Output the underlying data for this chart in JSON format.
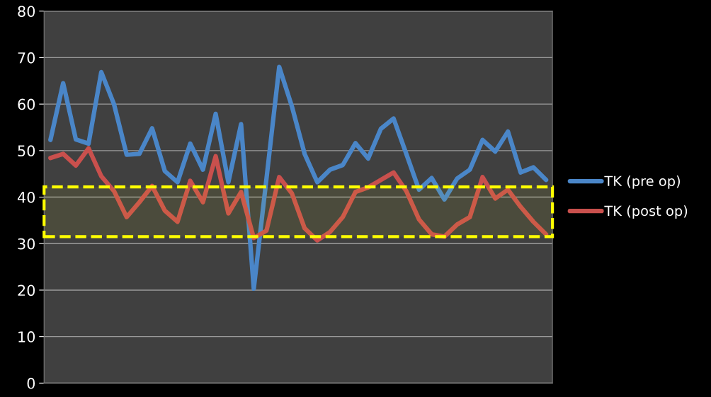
{
  "chart_data": {
    "type": "line",
    "categories": [
      null,
      null,
      null,
      null,
      null,
      null,
      null,
      null,
      null,
      null,
      null,
      null,
      null,
      null,
      null,
      null,
      null,
      null,
      null,
      null,
      null,
      null,
      null,
      null,
      null,
      null,
      null,
      null,
      null,
      null,
      null,
      null,
      null,
      null,
      null,
      null,
      null,
      null,
      null,
      null
    ],
    "series": [
      {
        "name": "TK (pre op)",
        "color": "#4a86c8",
        "values": [
          52.3,
          64.5,
          52.4,
          51.5,
          66.9,
          60,
          49.1,
          49.3,
          54.8,
          45.6,
          43.2,
          51.5,
          45.9,
          57.9,
          43.2,
          55.7,
          20.3,
          44,
          68,
          59.5,
          49.3,
          43.2,
          45.9,
          46.9,
          51.6,
          48.3,
          54.7,
          56.9,
          49.3,
          41.6,
          44.1,
          39.5,
          44,
          45.9,
          52.3,
          49.8,
          54.1,
          45.3,
          46.4,
          43.7
        ]
      },
      {
        "name": "TK (post op)",
        "color": "#c9504d",
        "values": [
          48.4,
          49.3,
          46.8,
          50.5,
          44.5,
          41.3,
          35.7,
          38.9,
          42.4,
          37.1,
          34.7,
          43.5,
          38.9,
          48.8,
          36.5,
          41.1,
          31.2,
          32.8,
          44.3,
          40.8,
          33.3,
          30.7,
          32.5,
          35.7,
          41.1,
          42.1,
          43.7,
          45.3,
          41.3,
          35.2,
          32,
          31.5,
          34.1,
          35.7,
          44.3,
          39.7,
          41.6,
          37.9,
          34.7,
          32
        ]
      }
    ],
    "ylim": [
      0,
      80
    ],
    "yticks": [
      0,
      10,
      20,
      30,
      40,
      50,
      60,
      70,
      80
    ],
    "grid": "y",
    "legend": "right",
    "tick_labels": "y",
    "line_style": "solid",
    "marker": "none",
    "bands": [
      {
        "axis": "y",
        "from": 31.5,
        "to": 42.2,
        "color": "#ffff00"
      }
    ]
  }
}
